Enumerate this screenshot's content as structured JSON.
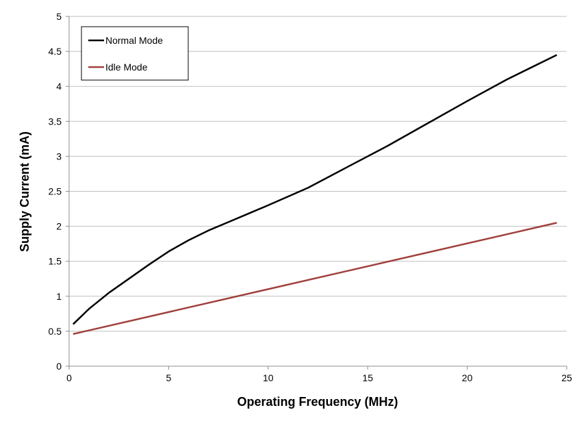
{
  "chart_data": {
    "type": "line",
    "title": "",
    "xlabel": "Operating Frequency (MHz)",
    "ylabel": "Supply Current (mA)",
    "xlim": [
      0,
      25
    ],
    "ylim": [
      0,
      5
    ],
    "x_ticks": [
      "0",
      "5",
      "10",
      "15",
      "20",
      "25"
    ],
    "y_ticks": [
      "0",
      "0.5",
      "1",
      "1.5",
      "2",
      "2.5",
      "3",
      "3.5",
      "4",
      "4.5",
      "5"
    ],
    "grid": "horizontal",
    "legend_position": "top-left",
    "series": [
      {
        "name": "Normal Mode",
        "color": "#000000",
        "points": [
          [
            0.2,
            0.6
          ],
          [
            1,
            0.82
          ],
          [
            2,
            1.05
          ],
          [
            3,
            1.25
          ],
          [
            4,
            1.45
          ],
          [
            5,
            1.64
          ],
          [
            6,
            1.8
          ],
          [
            7,
            1.94
          ],
          [
            8,
            2.06
          ],
          [
            9,
            2.18
          ],
          [
            10,
            2.3
          ],
          [
            12,
            2.55
          ],
          [
            14,
            2.85
          ],
          [
            16,
            3.15
          ],
          [
            18,
            3.47
          ],
          [
            20,
            3.79
          ],
          [
            22,
            4.1
          ],
          [
            24.5,
            4.45
          ]
        ]
      },
      {
        "name": "Idle Mode",
        "color": "#a0413d",
        "points": [
          [
            0.2,
            0.46
          ],
          [
            24.5,
            2.05
          ]
        ]
      }
    ]
  }
}
